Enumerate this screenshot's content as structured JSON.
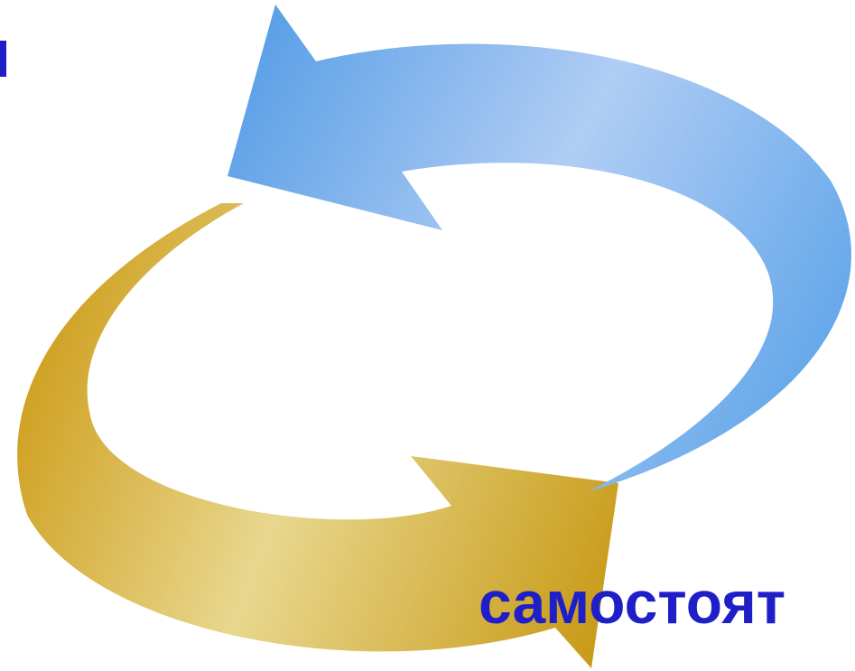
{
  "caption": "самостоят"
}
